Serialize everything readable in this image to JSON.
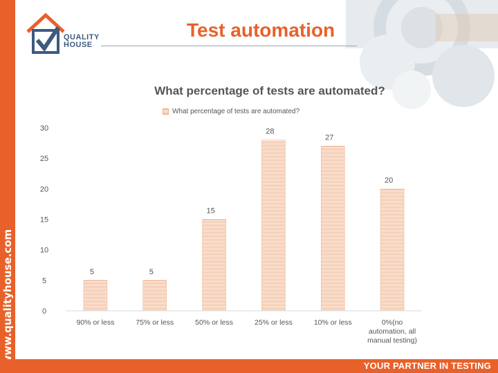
{
  "header": {
    "title": "Test automation",
    "logo_words": [
      "QUALITY",
      "HOUSE"
    ]
  },
  "sidebar": {
    "url": "www.qualityhouse.com"
  },
  "footer": {
    "tagline": "YOUR PARTNER IN TESTING"
  },
  "colors": {
    "accent": "#e8612a",
    "bar": "#f0b088",
    "text": "#555555"
  },
  "chart_data": {
    "type": "bar",
    "title": "What percentage of tests are automated?",
    "categories": [
      "90% or less",
      "75% or less",
      "50% or less",
      "25% or less",
      "10% or less",
      "0%(no automation, all manual testing)"
    ],
    "category_lines": [
      [
        "90% or less"
      ],
      [
        "75% or less"
      ],
      [
        "50% or less"
      ],
      [
        "25% or less"
      ],
      [
        "10% or less"
      ],
      [
        "0%(no",
        "automation, all",
        "manual testing)"
      ]
    ],
    "series": [
      {
        "name": "What percentage of tests are automated?",
        "values": [
          5,
          5,
          15,
          28,
          27,
          20
        ]
      }
    ],
    "ylim": [
      0,
      30
    ],
    "yticks": [
      0,
      5,
      10,
      15,
      20,
      25,
      30
    ],
    "legend_position": "top-center",
    "grid": false
  }
}
